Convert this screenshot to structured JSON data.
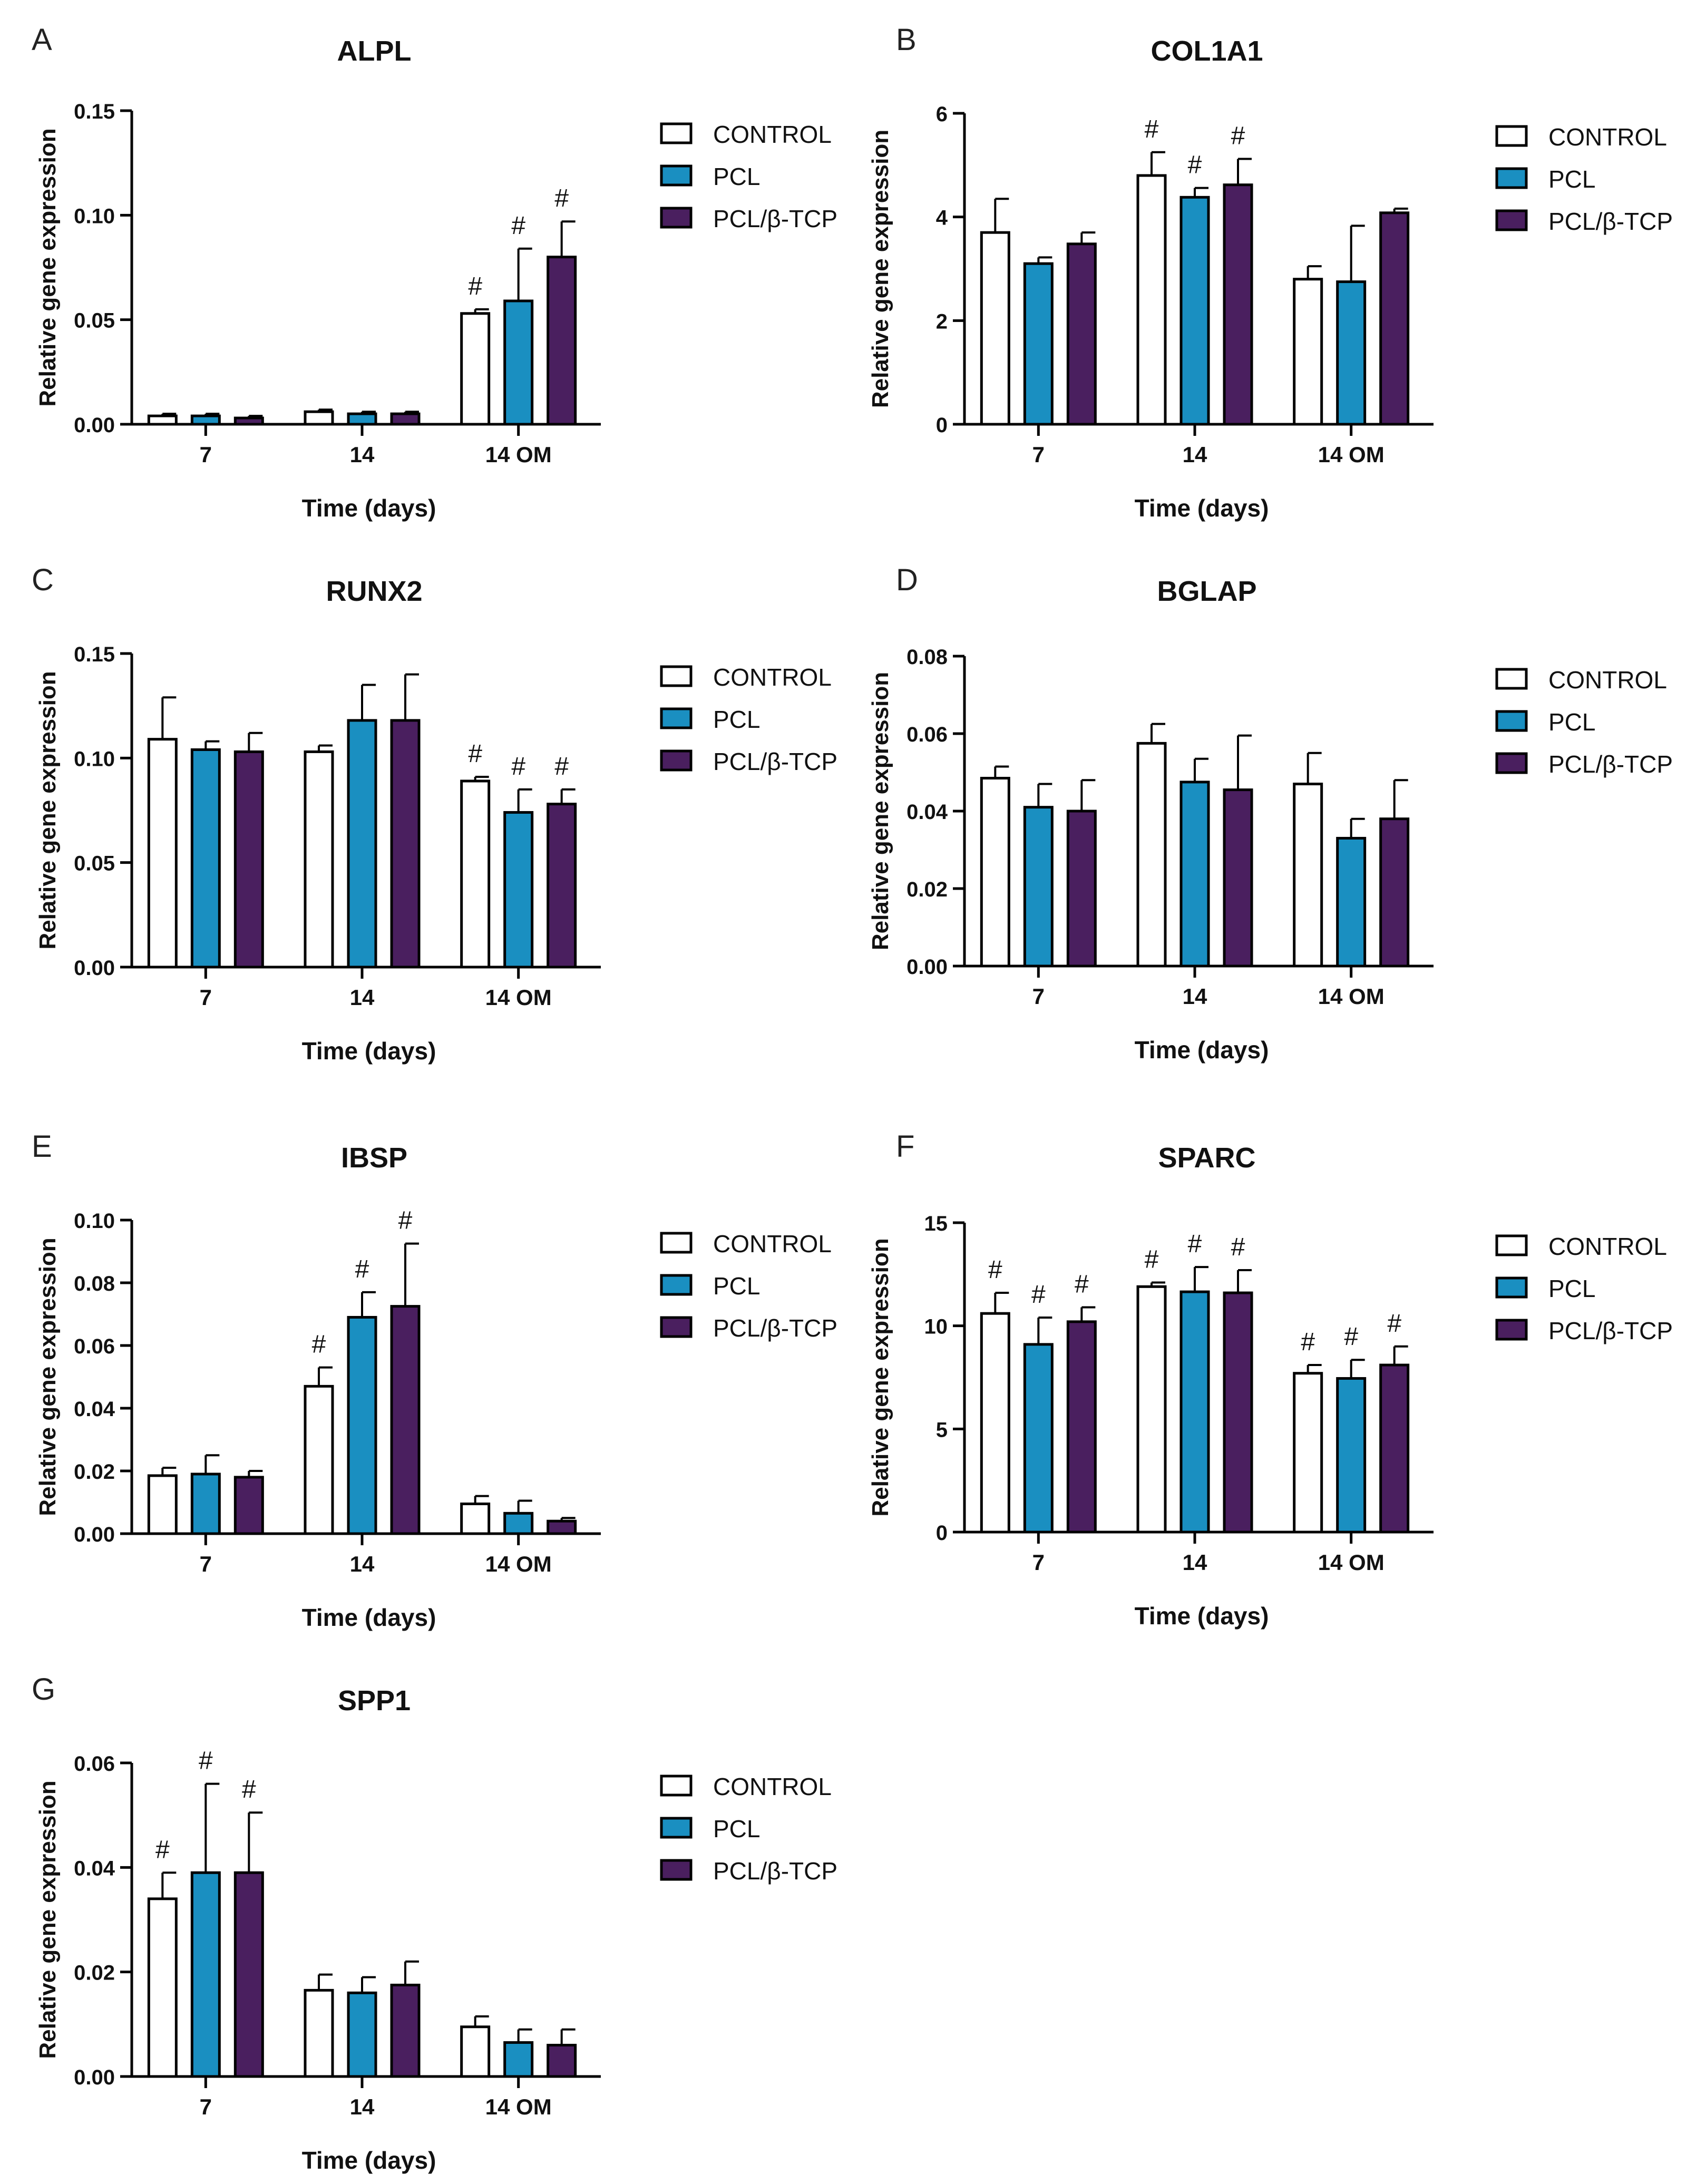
{
  "figure": {
    "colors": {
      "CONTROL": "#ffffff",
      "PCL": "#1a8fc1",
      "PCL/β-TCP": "#4a1f5f"
    },
    "significance_marker": "#"
  },
  "chart_data": [
    {
      "panel": "A",
      "type": "bar",
      "title": "ALPL",
      "xlabel": "Time (days)",
      "ylabel": "Relative gene expression",
      "categories": [
        "7",
        "14",
        "14 OM"
      ],
      "ylim": [
        0,
        0.15
      ],
      "yticks": [
        0,
        0.05,
        0.1,
        0.15
      ],
      "ytick_labels": [
        "0.00",
        "0.05",
        "0.10",
        "0.15"
      ],
      "legend": [
        "CONTROL",
        "PCL",
        "PCL/β-TCP"
      ],
      "legend_position": "right",
      "series": [
        {
          "name": "CONTROL",
          "values": [
            0.004,
            0.006,
            0.053
          ],
          "errors": [
            0.001,
            0.001,
            0.002
          ],
          "significant": [
            false,
            false,
            true
          ]
        },
        {
          "name": "PCL",
          "values": [
            0.004,
            0.005,
            0.059
          ],
          "errors": [
            0.001,
            0.001,
            0.025
          ],
          "significant": [
            false,
            false,
            true
          ]
        },
        {
          "name": "PCL/β-TCP",
          "values": [
            0.003,
            0.005,
            0.08
          ],
          "errors": [
            0.001,
            0.001,
            0.017
          ],
          "significant": [
            false,
            false,
            true
          ]
        }
      ]
    },
    {
      "panel": "B",
      "type": "bar",
      "title": "COL1A1",
      "xlabel": "Time (days)",
      "ylabel": "Relative gene expression",
      "categories": [
        "7",
        "14",
        "14 OM"
      ],
      "ylim": [
        0,
        6
      ],
      "yticks": [
        0,
        2,
        4,
        6
      ],
      "ytick_labels": [
        "0",
        "2",
        "4",
        "6"
      ],
      "legend": [
        "CONTROL",
        "PCL",
        "PCL/β-TCP"
      ],
      "legend_position": "right",
      "series": [
        {
          "name": "CONTROL",
          "values": [
            3.7,
            4.8,
            2.8
          ],
          "errors": [
            0.65,
            0.45,
            0.25
          ],
          "significant": [
            false,
            true,
            false
          ]
        },
        {
          "name": "PCL",
          "values": [
            3.1,
            4.38,
            2.75
          ],
          "errors": [
            0.12,
            0.18,
            1.08
          ],
          "significant": [
            false,
            true,
            false
          ]
        },
        {
          "name": "PCL/β-TCP",
          "values": [
            3.48,
            4.62,
            4.08
          ],
          "errors": [
            0.22,
            0.5,
            0.08
          ],
          "significant": [
            false,
            true,
            false
          ]
        }
      ]
    },
    {
      "panel": "C",
      "type": "bar",
      "title": "RUNX2",
      "xlabel": "Time (days)",
      "ylabel": "Relative gene expression",
      "categories": [
        "7",
        "14",
        "14 OM"
      ],
      "ylim": [
        0,
        0.15
      ],
      "yticks": [
        0,
        0.05,
        0.1,
        0.15
      ],
      "ytick_labels": [
        "0.00",
        "0.05",
        "0.10",
        "0.15"
      ],
      "legend": [
        "CONTROL",
        "PCL",
        "PCL/β-TCP"
      ],
      "legend_position": "right",
      "series": [
        {
          "name": "CONTROL",
          "values": [
            0.109,
            0.103,
            0.089
          ],
          "errors": [
            0.02,
            0.003,
            0.002
          ],
          "significant": [
            false,
            false,
            true
          ]
        },
        {
          "name": "PCL",
          "values": [
            0.104,
            0.118,
            0.074
          ],
          "errors": [
            0.004,
            0.017,
            0.011
          ],
          "significant": [
            false,
            false,
            true
          ]
        },
        {
          "name": "PCL/β-TCP",
          "values": [
            0.103,
            0.118,
            0.078
          ],
          "errors": [
            0.009,
            0.022,
            0.007
          ],
          "significant": [
            false,
            false,
            true
          ]
        }
      ]
    },
    {
      "panel": "D",
      "type": "bar",
      "title": "BGLAP",
      "xlabel": "Time (days)",
      "ylabel": "Relative gene expression",
      "categories": [
        "7",
        "14",
        "14 OM"
      ],
      "ylim": [
        0,
        0.08
      ],
      "yticks": [
        0,
        0.02,
        0.04,
        0.06,
        0.08
      ],
      "ytick_labels": [
        "0.00",
        "0.02",
        "0.04",
        "0.06",
        "0.08"
      ],
      "legend": [
        "CONTROL",
        "PCL",
        "PCL/β-TCP"
      ],
      "legend_position": "right",
      "series": [
        {
          "name": "CONTROL",
          "values": [
            0.0485,
            0.0575,
            0.047
          ],
          "errors": [
            0.003,
            0.005,
            0.008
          ],
          "significant": [
            false,
            false,
            false
          ]
        },
        {
          "name": "PCL",
          "values": [
            0.041,
            0.0475,
            0.033
          ],
          "errors": [
            0.006,
            0.006,
            0.005
          ],
          "significant": [
            false,
            false,
            false
          ]
        },
        {
          "name": "PCL/β-TCP",
          "values": [
            0.04,
            0.0455,
            0.038
          ],
          "errors": [
            0.008,
            0.014,
            0.01
          ],
          "significant": [
            false,
            false,
            false
          ]
        }
      ]
    },
    {
      "panel": "E",
      "type": "bar",
      "title": "IBSP",
      "xlabel": "Time (days)",
      "ylabel": "Relative gene expression",
      "categories": [
        "7",
        "14",
        "14 OM"
      ],
      "ylim": [
        0,
        0.1
      ],
      "yticks": [
        0,
        0.02,
        0.04,
        0.06,
        0.08,
        0.1
      ],
      "ytick_labels": [
        "0.00",
        "0.02",
        "0.04",
        "0.06",
        "0.08",
        "0.10"
      ],
      "legend": [
        "CONTROL",
        "PCL",
        "PCL/β-TCP"
      ],
      "legend_position": "right",
      "series": [
        {
          "name": "CONTROL",
          "values": [
            0.0185,
            0.047,
            0.0095
          ],
          "errors": [
            0.0025,
            0.006,
            0.0025
          ],
          "significant": [
            false,
            true,
            false
          ]
        },
        {
          "name": "PCL",
          "values": [
            0.019,
            0.069,
            0.0065
          ],
          "errors": [
            0.006,
            0.008,
            0.004
          ],
          "significant": [
            false,
            true,
            false
          ]
        },
        {
          "name": "PCL/β-TCP",
          "values": [
            0.018,
            0.0725,
            0.004
          ],
          "errors": [
            0.002,
            0.02,
            0.001
          ],
          "significant": [
            false,
            true,
            false
          ]
        }
      ]
    },
    {
      "panel": "F",
      "type": "bar",
      "title": "SPARC",
      "xlabel": "Time (days)",
      "ylabel": "Relative gene expression",
      "categories": [
        "7",
        "14",
        "14 OM"
      ],
      "ylim": [
        0,
        15
      ],
      "yticks": [
        0,
        5,
        10,
        15
      ],
      "ytick_labels": [
        "0",
        "5",
        "10",
        "15"
      ],
      "legend": [
        "CONTROL",
        "PCL",
        "PCL/β-TCP"
      ],
      "legend_position": "right",
      "series": [
        {
          "name": "CONTROL",
          "values": [
            10.6,
            11.9,
            7.7
          ],
          "errors": [
            1.0,
            0.2,
            0.4
          ],
          "significant": [
            true,
            true,
            true
          ]
        },
        {
          "name": "PCL",
          "values": [
            9.1,
            11.65,
            7.45
          ],
          "errors": [
            1.3,
            1.2,
            0.9
          ],
          "significant": [
            true,
            true,
            true
          ]
        },
        {
          "name": "PCL/β-TCP",
          "values": [
            10.2,
            11.6,
            8.1
          ],
          "errors": [
            0.7,
            1.1,
            0.9
          ],
          "significant": [
            true,
            true,
            true
          ]
        }
      ]
    },
    {
      "panel": "G",
      "type": "bar",
      "title": "SPP1",
      "xlabel": "Time (days)",
      "ylabel": "Relative gene expression",
      "categories": [
        "7",
        "14",
        "14 OM"
      ],
      "ylim": [
        0,
        0.06
      ],
      "yticks": [
        0,
        0.02,
        0.04,
        0.06
      ],
      "ytick_labels": [
        "0.00",
        "0.02",
        "0.04",
        "0.06"
      ],
      "legend": [
        "CONTROL",
        "PCL",
        "PCL/β-TCP"
      ],
      "legend_position": "right",
      "series": [
        {
          "name": "CONTROL",
          "values": [
            0.034,
            0.0165,
            0.0095
          ],
          "errors": [
            0.005,
            0.003,
            0.002
          ],
          "significant": [
            true,
            false,
            false
          ]
        },
        {
          "name": "PCL",
          "values": [
            0.039,
            0.016,
            0.0065
          ],
          "errors": [
            0.017,
            0.003,
            0.0025
          ],
          "significant": [
            true,
            false,
            false
          ]
        },
        {
          "name": "PCL/β-TCP",
          "values": [
            0.039,
            0.0175,
            0.006
          ],
          "errors": [
            0.0115,
            0.0045,
            0.003
          ],
          "significant": [
            true,
            false,
            false
          ]
        }
      ]
    }
  ]
}
